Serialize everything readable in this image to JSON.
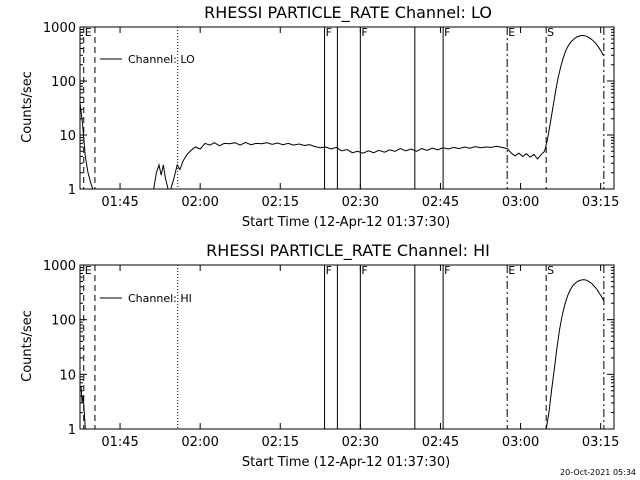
{
  "footer_timestamp": "20-Oct-2021 05:34",
  "chart_data": [
    {
      "type": "line",
      "title": "RHESSI PARTICLE_RATE Channel: LO",
      "xlabel": "Start Time (12-Apr-12 01:37:30)",
      "ylabel": "Counts/sec",
      "yscale": "log",
      "ylim": [
        1,
        1000
      ],
      "xlim_minutes": [
        0,
        100
      ],
      "x_ticks": [
        {
          "label": "01:45",
          "value": 7.5
        },
        {
          "label": "02:00",
          "value": 22.5
        },
        {
          "label": "02:15",
          "value": 37.5
        },
        {
          "label": "02:30",
          "value": 52.5
        },
        {
          "label": "02:45",
          "value": 67.5
        },
        {
          "label": "03:00",
          "value": 82.5
        },
        {
          "label": "03:15",
          "value": 97.5
        }
      ],
      "y_ticks": [
        {
          "label": "1",
          "value": 1
        },
        {
          "label": "10",
          "value": 10
        },
        {
          "label": "100",
          "value": 100
        },
        {
          "label": "1000",
          "value": 1000
        }
      ],
      "legend": {
        "label": "Channel: LO",
        "position": "top-left"
      },
      "event_lines": [
        {
          "x": 0.7,
          "style": "dashed",
          "label": "E"
        },
        {
          "x": 2.8,
          "style": "dashed",
          "label": ""
        },
        {
          "x": 18.3,
          "style": "dotted",
          "label": ""
        },
        {
          "x": 45.8,
          "style": "solid",
          "label": "F"
        },
        {
          "x": 48.2,
          "style": "solid",
          "label": ""
        },
        {
          "x": 52.5,
          "style": "solid",
          "label": "F"
        },
        {
          "x": 62.7,
          "style": "solid",
          "label": ""
        },
        {
          "x": 68.0,
          "style": "solid",
          "label": "F"
        },
        {
          "x": 80.0,
          "style": "dashdot",
          "label": "E"
        },
        {
          "x": 87.3,
          "style": "dashed",
          "label": "S"
        },
        {
          "x": 98.1,
          "style": "dashdot",
          "label": ""
        }
      ],
      "series": [
        {
          "name": "Channel: LO",
          "segments": [
            {
              "x": [
                0.0,
                0.5,
                1.0,
                1.5,
                2.0,
                2.4
              ],
              "y": [
                40,
                15,
                4,
                2,
                1.3,
                1.0
              ]
            },
            {
              "x": [
                13.8,
                14.3,
                14.8,
                15.2,
                15.6,
                16.0,
                16.5
              ],
              "y": [
                1.0,
                2.0,
                2.8,
                1.8,
                2.8,
                1.6,
                1.0
              ]
            },
            {
              "x": [
                17.0,
                17.6,
                18.2,
                18.7,
                19.3,
                20.0,
                20.8,
                21.6,
                22.5,
                23.4,
                24.3,
                25.2,
                26.1,
                27.0,
                28.0,
                29.0,
                30.0,
                31.0,
                32.0,
                33.0,
                34.0,
                35.0,
                36.0,
                37.0,
                38.0,
                39.0,
                40.0,
                41.0,
                42.0,
                43.0,
                44.0,
                45.0,
                46.0,
                47.0,
                48.0,
                49.0,
                50.0,
                51.0,
                52.0,
                53.0,
                54.0,
                55.0,
                56.0,
                57.0,
                58.0,
                59.0,
                60.0,
                61.0,
                62.0,
                63.0,
                64.0,
                65.0,
                66.0,
                67.0,
                68.0,
                69.0,
                70.0,
                71.0,
                72.0,
                73.0,
                74.0,
                75.0,
                76.0,
                77.0,
                78.0,
                79.0,
                80.0,
                80.8,
                81.5,
                82.2,
                82.9,
                83.6,
                84.3,
                85.0,
                85.7,
                86.4,
                87.0
              ],
              "y": [
                1.0,
                1.6,
                2.8,
                2.3,
                3.3,
                4.3,
                5.2,
                6.0,
                5.5,
                7.0,
                6.5,
                7.2,
                6.3,
                7.0,
                6.9,
                7.2,
                6.5,
                7.3,
                6.6,
                7.0,
                6.9,
                7.2,
                6.7,
                7.1,
                6.6,
                7.0,
                6.5,
                6.8,
                6.4,
                6.6,
                6.1,
                5.8,
                6.0,
                5.5,
                5.9,
                5.1,
                5.4,
                4.7,
                5.0,
                4.6,
                5.1,
                4.7,
                5.2,
                4.8,
                5.3,
                5.0,
                5.6,
                5.1,
                5.5,
                5.0,
                5.6,
                5.2,
                5.7,
                5.3,
                5.8,
                5.5,
                5.9,
                5.6,
                6.0,
                5.7,
                6.1,
                5.8,
                6.0,
                5.9,
                6.2,
                5.9,
                5.6,
                4.6,
                4.1,
                4.6,
                4.0,
                4.5,
                3.9,
                4.4,
                3.6,
                4.4,
                5.0
              ]
            },
            {
              "x": [
                87.0,
                87.5,
                88.0,
                88.5,
                89.0,
                89.5,
                90.0,
                90.5,
                91.0,
                91.5,
                92.0,
                92.5,
                93.0,
                93.5,
                94.0,
                94.5,
                95.0,
                95.5,
                96.0,
                96.5,
                97.0,
                97.5,
                98.0
              ],
              "y": [
                5.0,
                8.0,
                15,
                30,
                60,
                110,
                180,
                270,
                370,
                460,
                540,
                600,
                650,
                680,
                700,
                690,
                660,
                620,
                570,
                510,
                440,
                370,
                300
              ]
            }
          ]
        }
      ]
    },
    {
      "type": "line",
      "title": "RHESSI PARTICLE_RATE Channel: HI",
      "xlabel": "Start Time (12-Apr-12 01:37:30)",
      "ylabel": "Counts/sec",
      "yscale": "log",
      "ylim": [
        1,
        1000
      ],
      "xlim_minutes": [
        0,
        100
      ],
      "x_ticks": [
        {
          "label": "01:45",
          "value": 7.5
        },
        {
          "label": "02:00",
          "value": 22.5
        },
        {
          "label": "02:15",
          "value": 37.5
        },
        {
          "label": "02:30",
          "value": 52.5
        },
        {
          "label": "02:45",
          "value": 67.5
        },
        {
          "label": "03:00",
          "value": 82.5
        },
        {
          "label": "03:15",
          "value": 97.5
        }
      ],
      "y_ticks": [
        {
          "label": "1",
          "value": 1
        },
        {
          "label": "10",
          "value": 10
        },
        {
          "label": "100",
          "value": 100
        },
        {
          "label": "1000",
          "value": 1000
        }
      ],
      "legend": {
        "label": "Channel: HI",
        "position": "top-left"
      },
      "event_lines": [
        {
          "x": 0.7,
          "style": "dashed",
          "label": "E"
        },
        {
          "x": 2.8,
          "style": "dashed",
          "label": ""
        },
        {
          "x": 18.3,
          "style": "dotted",
          "label": ""
        },
        {
          "x": 45.8,
          "style": "solid",
          "label": "F"
        },
        {
          "x": 48.2,
          "style": "solid",
          "label": ""
        },
        {
          "x": 52.5,
          "style": "solid",
          "label": "F"
        },
        {
          "x": 62.7,
          "style": "solid",
          "label": ""
        },
        {
          "x": 68.0,
          "style": "solid",
          "label": "F"
        },
        {
          "x": 80.0,
          "style": "dashdot",
          "label": "E"
        },
        {
          "x": 87.3,
          "style": "dashed",
          "label": "S"
        },
        {
          "x": 98.1,
          "style": "dashdot",
          "label": ""
        }
      ],
      "series": [
        {
          "name": "Channel: HI",
          "segments": [
            {
              "x": [
                0.2,
                0.4,
                0.6,
                0.8,
                1.0
              ],
              "y": [
                6,
                3,
                4,
                2,
                1.0
              ]
            },
            {
              "x": [
                87.3,
                87.8,
                88.3,
                88.8,
                89.3,
                89.8,
                90.3,
                90.8,
                91.3,
                91.8,
                92.3,
                92.8,
                93.3,
                93.8,
                94.3,
                94.8,
                95.3,
                95.8,
                96.3,
                96.8,
                97.3,
                97.8,
                98.1
              ],
              "y": [
                1.0,
                2.0,
                5,
                12,
                30,
                65,
                120,
                190,
                270,
                350,
                420,
                470,
                510,
                530,
                540,
                530,
                500,
                460,
                410,
                360,
                300,
                250,
                220
              ]
            }
          ]
        }
      ]
    }
  ]
}
